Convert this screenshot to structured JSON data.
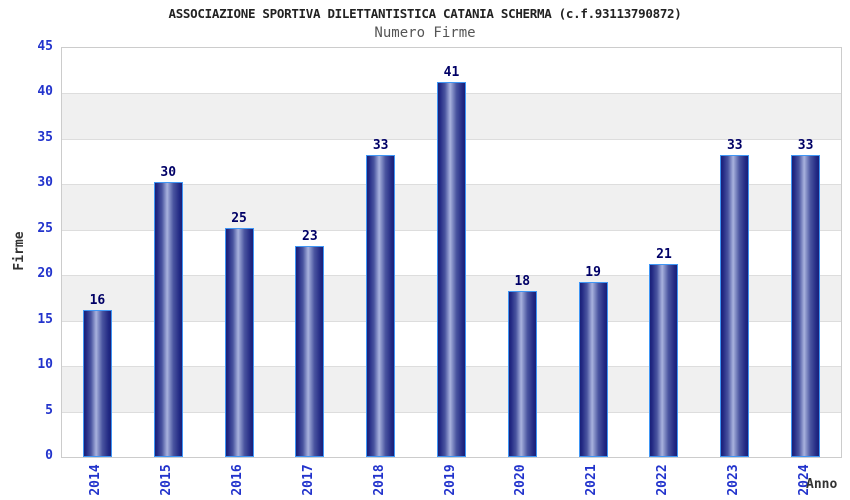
{
  "header": {
    "title": "ASSOCIAZIONE SPORTIVA DILETTANTISTICA CATANIA SCHERMA (c.f.93113790872)",
    "subtitle": "Numero Firme"
  },
  "chart_data": {
    "type": "bar",
    "title": "Numero Firme",
    "categories": [
      "2014",
      "2015",
      "2016",
      "2017",
      "2018",
      "2019",
      "2020",
      "2021",
      "2022",
      "2023",
      "2024"
    ],
    "values": [
      16,
      30,
      25,
      23,
      33,
      41,
      18,
      19,
      21,
      33,
      33
    ],
    "xlabel": "Anno",
    "ylabel": "Firme",
    "ylim": [
      0,
      45
    ],
    "yticks": [
      0,
      5,
      10,
      15,
      20,
      25,
      30,
      35,
      40,
      45
    ],
    "grid": true,
    "legend_position": "none",
    "band_pattern": "alternating horizontal bands every 5 units, white then gray from top"
  },
  "colors": {
    "page_bg": "#ffffff",
    "title_color": "#222222",
    "subtitle_color": "#555555",
    "axis_label": "#2233cc",
    "axis_title_color": "#333333",
    "value_color": "#000066",
    "band_gray": "#f0f0f0",
    "band_white": "#ffffff",
    "grid_line": "#dddddd",
    "plot_border": "#cccccc",
    "bar_border": "#3f96f5",
    "bar_dark": "#1a1f78",
    "bar_light": "#a8b2de"
  }
}
